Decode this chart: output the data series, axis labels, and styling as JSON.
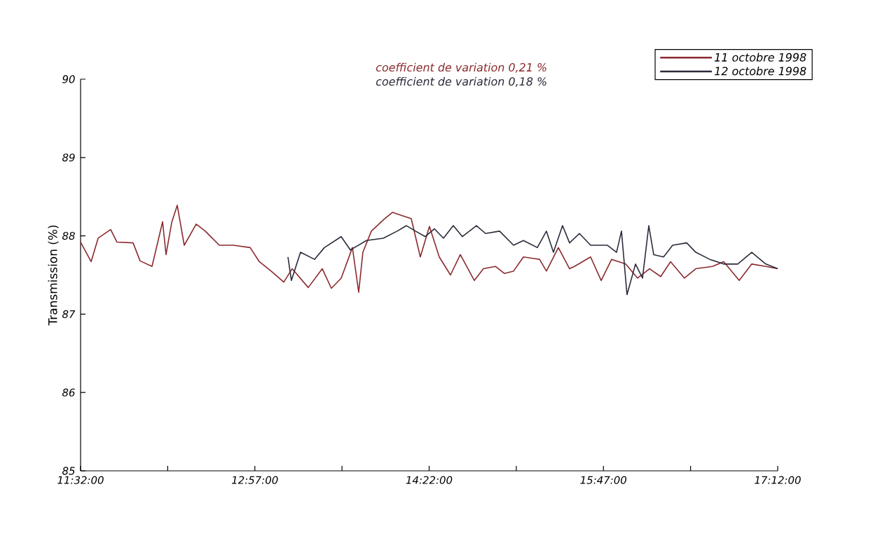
{
  "chart_data": {
    "type": "line",
    "ylabel": "Transmission (%)",
    "annotations": [
      "coefficient de variation 0,21 %",
      "coefficient de variation 0,18 %"
    ],
    "xlim": [
      11.5333,
      17.2
    ],
    "ylim": [
      85,
      90
    ],
    "xticks": [
      {
        "value": 11.5333,
        "label": "11:32:00"
      },
      {
        "value": 12.2417,
        "label": null
      },
      {
        "value": 12.95,
        "label": "12:57:00"
      },
      {
        "value": 13.6583,
        "label": null
      },
      {
        "value": 14.3667,
        "label": "14:22:00"
      },
      {
        "value": 15.075,
        "label": null
      },
      {
        "value": 15.7833,
        "label": "15:47:00"
      },
      {
        "value": 16.4917,
        "label": null
      },
      {
        "value": 17.2,
        "label": "17:12:00"
      }
    ],
    "yticks": [
      85,
      86,
      87,
      88,
      89,
      90
    ],
    "legend": "top right",
    "line_style": "solid",
    "marker": "none",
    "series": [
      {
        "name": "11 octobre 1998",
        "color": "#8b2a2e",
        "x": [
          11.5333,
          11.619,
          11.676,
          11.778,
          11.829,
          11.96,
          12.017,
          12.114,
          12.2,
          12.228,
          12.274,
          12.319,
          12.376,
          12.473,
          12.547,
          12.661,
          12.775,
          12.912,
          12.986,
          13.082,
          13.185,
          13.253,
          13.384,
          13.498,
          13.572,
          13.652,
          13.743,
          13.794,
          13.828,
          13.897,
          13.999,
          14.068,
          14.142,
          14.221,
          14.295,
          14.369,
          14.449,
          14.54,
          14.62,
          14.734,
          14.808,
          14.905,
          14.979,
          15.053,
          15.133,
          15.264,
          15.32,
          15.417,
          15.508,
          15.548,
          15.679,
          15.765,
          15.85,
          15.964,
          16.061,
          16.158,
          16.249,
          16.329,
          16.442,
          16.534,
          16.67,
          16.761,
          16.887,
          16.989,
          17.103,
          17.2
        ],
        "values": [
          87.92,
          87.67,
          87.97,
          88.08,
          87.92,
          87.91,
          87.68,
          87.61,
          88.18,
          87.76,
          88.17,
          88.39,
          87.88,
          88.15,
          88.06,
          87.88,
          87.88,
          87.85,
          87.67,
          87.55,
          87.41,
          87.58,
          87.34,
          87.58,
          87.33,
          87.46,
          87.85,
          87.28,
          87.79,
          88.06,
          88.21,
          88.3,
          88.26,
          88.22,
          87.73,
          88.12,
          87.73,
          87.5,
          87.76,
          87.43,
          87.58,
          87.61,
          87.52,
          87.55,
          87.73,
          87.7,
          87.55,
          87.85,
          87.58,
          87.61,
          87.73,
          87.43,
          87.7,
          87.64,
          87.46,
          87.58,
          87.48,
          87.67,
          87.46,
          87.58,
          87.61,
          87.67,
          87.43,
          87.64,
          87.61,
          87.58
        ]
      },
      {
        "name": "12 octobre 1998",
        "color": "#2b2b3b",
        "x": [
          13.219,
          13.247,
          13.321,
          13.435,
          13.515,
          13.652,
          13.726,
          13.857,
          13.994,
          14.107,
          14.182,
          14.256,
          14.335,
          14.409,
          14.483,
          14.563,
          14.637,
          14.751,
          14.825,
          14.939,
          15.053,
          15.133,
          15.246,
          15.32,
          15.377,
          15.451,
          15.508,
          15.588,
          15.679,
          15.816,
          15.89,
          15.93,
          15.975,
          16.044,
          16.101,
          16.152,
          16.192,
          16.272,
          16.346,
          16.46,
          16.534,
          16.647,
          16.761,
          16.875,
          16.989,
          17.103,
          17.2
        ],
        "values": [
          87.73,
          87.43,
          87.79,
          87.7,
          87.85,
          87.99,
          87.82,
          87.94,
          87.97,
          88.06,
          88.13,
          88.06,
          87.99,
          88.09,
          87.97,
          88.13,
          87.99,
          88.13,
          88.03,
          88.06,
          87.88,
          87.94,
          87.85,
          88.06,
          87.79,
          88.13,
          87.91,
          88.03,
          87.88,
          87.88,
          87.79,
          88.06,
          87.25,
          87.64,
          87.46,
          88.13,
          87.76,
          87.73,
          87.88,
          87.91,
          87.79,
          87.7,
          87.64,
          87.64,
          87.79,
          87.64,
          87.58
        ]
      }
    ]
  }
}
